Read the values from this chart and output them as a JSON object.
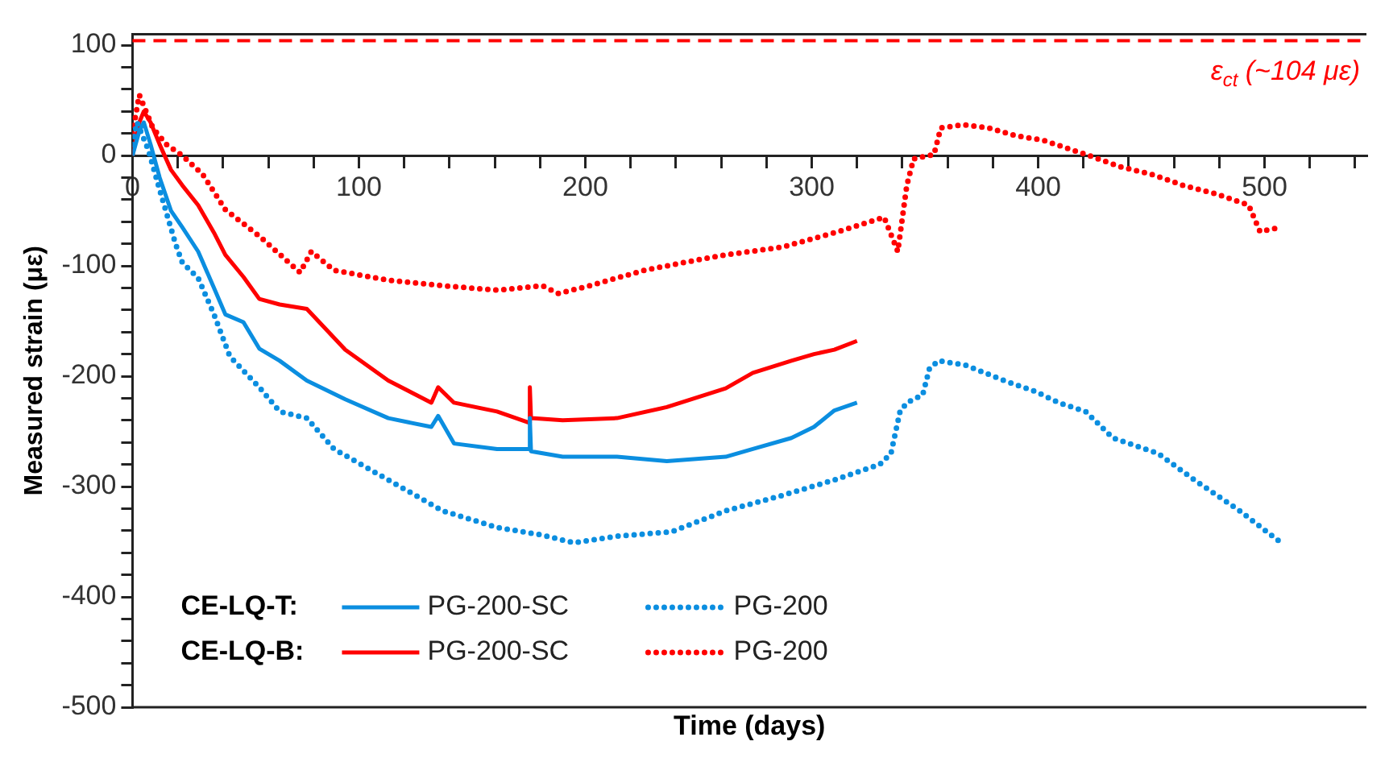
{
  "chart_data": {
    "type": "line",
    "xlabel": "Time (days)",
    "ylabel": "Measured strain (με)",
    "x": [
      0,
      3,
      5,
      8,
      12,
      17,
      22,
      29,
      36,
      41,
      49,
      56,
      65,
      77,
      94,
      113,
      132,
      135,
      142,
      161,
      175,
      175.5,
      176,
      190,
      214,
      236,
      262,
      274,
      291,
      301,
      310,
      320
    ],
    "series": [
      {
        "name": "PG-200-SC",
        "color": "#0b8ee0",
        "line_style": "solid",
        "values": [
          0,
          22,
          30,
          10,
          -20,
          -50,
          -65,
          -87,
          -120,
          -144,
          -151,
          -175,
          -186,
          -204,
          -221,
          -238,
          -246,
          -236,
          -261,
          -266,
          -266,
          -238,
          -268,
          -273,
          -273,
          -277,
          -273,
          -266,
          -256,
          -246,
          -231,
          -224
        ]
      },
      {
        "name": "PG-200",
        "color": "#0b8ee0",
        "line_style": "dotted",
        "x": [
          0,
          2,
          7,
          12,
          19,
          22,
          29,
          36,
          43,
          56,
          65,
          77,
          89,
          113,
          137,
          161,
          181,
          195,
          214,
          238,
          262,
          287,
          310,
          330,
          335,
          339,
          342,
          349,
          352,
          356,
          368,
          385,
          399,
          409,
          421,
          433,
          453,
          469,
          489,
          508
        ],
        "values": [
          10,
          30,
          5,
          -31,
          -80,
          -97,
          -111,
          -144,
          -182,
          -210,
          -232,
          -238,
          -266,
          -294,
          -322,
          -337,
          -344,
          -351,
          -345,
          -341,
          -322,
          -308,
          -294,
          -280,
          -270,
          -232,
          -224,
          -217,
          -193,
          -186,
          -190,
          -204,
          -214,
          -224,
          -232,
          -256,
          -270,
          -294,
          -322,
          -352
        ]
      },
      {
        "name": "PG-200-SC",
        "color": "#ff0000",
        "line_style": "solid",
        "values": [
          0,
          30,
          40,
          30,
          10,
          -13,
          -27,
          -45,
          -70,
          -90,
          -110,
          -130,
          -135,
          -139,
          -176,
          -204,
          -224,
          -210,
          -224,
          -232,
          -242,
          -210,
          -238,
          -240,
          -238,
          -228,
          -211,
          -197,
          -186,
          -180,
          -176,
          -168
        ]
      },
      {
        "name": "PG-200",
        "color": "#ff0000",
        "line_style": "dotted",
        "x": [
          0,
          3,
          6,
          9,
          15,
          22,
          31,
          41,
          56,
          74,
          79,
          89,
          113,
          137,
          161,
          181,
          188,
          202,
          226,
          251,
          262,
          287,
          310,
          332,
          338,
          342,
          345,
          354,
          357,
          367,
          378,
          390,
          402,
          421,
          436,
          450,
          464,
          479,
          493,
          498,
          505
        ],
        "values": [
          20,
          55,
          40,
          25,
          10,
          0,
          -17,
          -49,
          -73,
          -106,
          -87,
          -104,
          -113,
          -118,
          -122,
          -118,
          -125,
          -118,
          -104,
          -94,
          -90,
          -83,
          -70,
          -56,
          -87,
          -27,
          -3,
          1,
          25,
          28,
          25,
          18,
          14,
          1,
          -10,
          -17,
          -27,
          -35,
          -45,
          -69,
          -66
        ]
      }
    ],
    "xlim": [
      0,
      545
    ],
    "xticks": [
      0,
      {
        "value": 20,
        "label": null
      },
      {
        "value": 40,
        "label": null
      },
      {
        "value": 60,
        "label": null
      },
      {
        "value": 80,
        "label": null
      },
      100,
      {
        "value": 120,
        "label": null
      },
      {
        "value": 140,
        "label": null
      },
      {
        "value": 160,
        "label": null
      },
      {
        "value": 180,
        "label": null
      },
      200,
      {
        "value": 220,
        "label": null
      },
      {
        "value": 240,
        "label": null
      },
      {
        "value": 260,
        "label": null
      },
      {
        "value": 280,
        "label": null
      },
      300,
      {
        "value": 320,
        "label": null
      },
      {
        "value": 340,
        "label": null
      },
      {
        "value": 360,
        "label": null
      },
      {
        "value": 380,
        "label": null
      },
      400,
      {
        "value": 420,
        "label": null
      },
      {
        "value": 440,
        "label": null
      },
      {
        "value": 460,
        "label": null
      },
      {
        "value": 480,
        "label": null
      },
      500,
      {
        "value": 520,
        "label": null
      },
      {
        "value": 540,
        "label": null
      }
    ],
    "ylim": [
      -500,
      110
    ],
    "yticks": [
      -500,
      {
        "value": -480,
        "label": null
      },
      {
        "value": -460,
        "label": null
      },
      {
        "value": -440,
        "label": null
      },
      {
        "value": -420,
        "label": null
      },
      -400,
      {
        "value": -380,
        "label": null
      },
      {
        "value": -360,
        "label": null
      },
      {
        "value": -340,
        "label": null
      },
      {
        "value": -320,
        "label": null
      },
      -300,
      {
        "value": -280,
        "label": null
      },
      {
        "value": -260,
        "label": null
      },
      {
        "value": -240,
        "label": null
      },
      {
        "value": -220,
        "label": null
      },
      -200,
      {
        "value": -180,
        "label": null
      },
      {
        "value": -160,
        "label": null
      },
      {
        "value": -140,
        "label": null
      },
      {
        "value": -120,
        "label": null
      },
      -100,
      {
        "value": -80,
        "label": null
      },
      {
        "value": -60,
        "label": null
      },
      {
        "value": -40,
        "label": null
      },
      {
        "value": -20,
        "label": null
      },
      0,
      {
        "value": 20,
        "label": null
      },
      {
        "value": 40,
        "label": null
      },
      {
        "value": 60,
        "label": null
      },
      {
        "value": 80,
        "label": null
      },
      100
    ],
    "ref_lines": [
      {
        "axis": "y",
        "value": 104,
        "label": "ε$_{ct}$ (~104 με)",
        "color": "#ff0000",
        "line_style": "dashed"
      }
    ],
    "annotations": [
      "CE-LQ-T:",
      "CE-LQ-B:"
    ],
    "legend": "bottom left",
    "grid": false,
    "marker": "none"
  }
}
